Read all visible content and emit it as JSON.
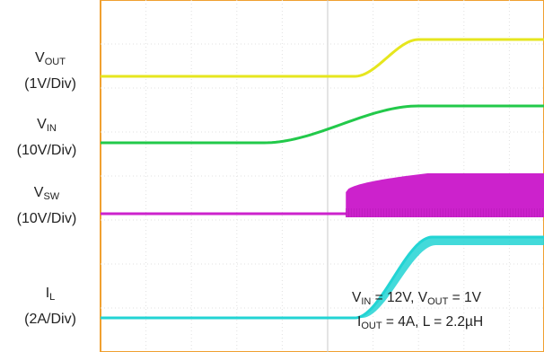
{
  "chart_data": {
    "type": "line",
    "title": "",
    "grid": true,
    "channels": [
      {
        "symbol": "V",
        "subscript": "OUT",
        "scale": "(1V/Div)",
        "color": "#e6e61e",
        "waveform": "ramp",
        "low": 0,
        "high": 1,
        "ramp_start_div": 5.6,
        "ramp_end_div": 7.0
      },
      {
        "symbol": "V",
        "subscript": "IN",
        "scale": "(10V/Div)",
        "color": "#22c94a",
        "waveform": "ramp",
        "low": 0,
        "high": 12,
        "ramp_start_div": 3.6,
        "ramp_end_div": 7.0
      },
      {
        "symbol": "V",
        "subscript": "SW",
        "scale": "(10V/Div)",
        "color": "#cc22cc",
        "waveform": "switching",
        "low": 0,
        "high": 12,
        "switch_start_div": 5.4,
        "ramp_end_div": 7.2
      },
      {
        "symbol": "I",
        "subscript": "L",
        "scale": "(2A/Div)",
        "color": "#22d4d4",
        "waveform": "ramp",
        "low": 0,
        "high": 4,
        "ramp_start_div": 5.6,
        "ramp_end_div": 7.3
      }
    ],
    "annotation": {
      "line1": [
        {
          "t": "V"
        },
        {
          "t": "IN",
          "sub": true
        },
        {
          "t": " = 12V, V"
        },
        {
          "t": "OUT",
          "sub": true
        },
        {
          "t": " = 1V"
        }
      ],
      "line2": [
        {
          "t": "I"
        },
        {
          "t": "OUT",
          "sub": true
        },
        {
          "t": " = 4A, L = 2.2µH"
        }
      ]
    }
  }
}
